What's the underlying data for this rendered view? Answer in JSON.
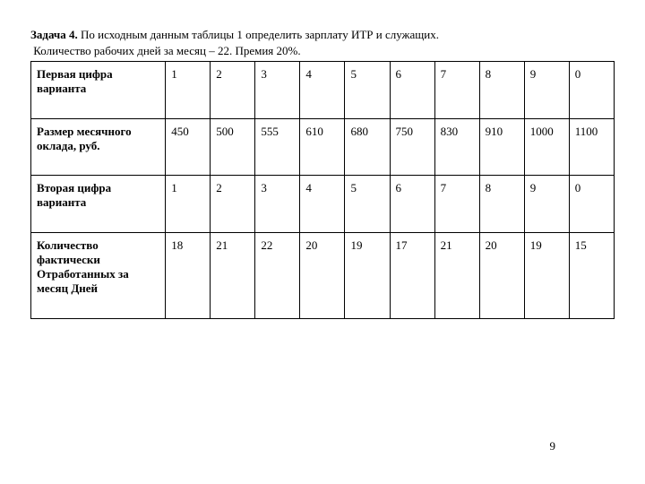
{
  "problem": {
    "label": "Задача 4.",
    "text": "По исходным данным таблицы 1 определить зарплату ИТР и служащих.",
    "subtext": " Количество рабочих дней за месяц – 22. Премия 20%."
  },
  "table": {
    "rows": [
      {
        "label": "Первая цифра варианта",
        "values": [
          "1",
          "2",
          "3",
          "4",
          "5",
          "6",
          "7",
          "8",
          "9",
          "0"
        ]
      },
      {
        "label": "Размер месячного оклада, руб.",
        "values": [
          "450",
          "500",
          "555",
          "610",
          "680",
          "750",
          "830",
          "910",
          "1000",
          "1100"
        ]
      },
      {
        "label": "Вторая цифра варианта",
        "values": [
          "1",
          "2",
          "3",
          "4",
          "5",
          "6",
          "7",
          "8",
          "9",
          "0"
        ]
      },
      {
        "label": "Количество фактически Отработанных за месяц Дней",
        "values": [
          "18",
          "21",
          "22",
          "20",
          "19",
          "17",
          "21",
          "20",
          "19",
          "15"
        ]
      }
    ]
  },
  "page_number": "9"
}
